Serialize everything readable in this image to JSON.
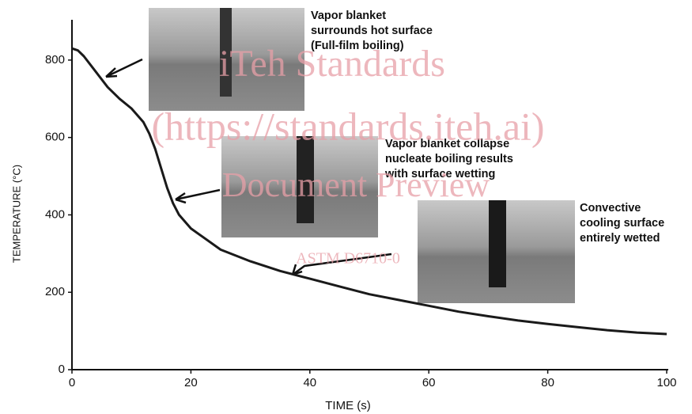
{
  "chart_data": {
    "type": "line",
    "xlabel": "TIME (s)",
    "ylabel": "TEMPERATURE (°C)",
    "x": [
      0,
      1,
      2,
      4,
      6,
      8,
      10,
      12,
      13,
      14,
      15,
      16,
      17,
      18,
      20,
      25,
      30,
      35,
      40,
      45,
      50,
      55,
      60,
      65,
      70,
      75,
      80,
      85,
      90,
      95,
      100
    ],
    "values": [
      830,
      825,
      810,
      770,
      730,
      700,
      675,
      640,
      610,
      570,
      520,
      470,
      430,
      400,
      365,
      310,
      280,
      255,
      235,
      215,
      195,
      180,
      165,
      150,
      138,
      127,
      118,
      110,
      102,
      96,
      92
    ],
    "color": "#1a1a1a",
    "xlim": [
      0,
      100
    ],
    "xticks": [
      0,
      20,
      40,
      60,
      80,
      100
    ],
    "ylim": [
      0,
      900
    ],
    "yticks": [
      0,
      200,
      400,
      600,
      800
    ],
    "annotations": [
      {
        "lines": [
          "Vapor blanket",
          "surrounds hot surface",
          "(Full-film boiling)"
        ]
      },
      {
        "lines": [
          "Vapor blanket collapse",
          "nucleate boiling results",
          "with surface wetting"
        ]
      },
      {
        "lines": [
          "Convective",
          "cooling surface",
          "entirely wetted"
        ]
      }
    ],
    "watermarks": [
      "iTeh Standards",
      "(https://standards.iteh.ai)",
      "Document Preview",
      "ASTM D6710-0"
    ]
  }
}
